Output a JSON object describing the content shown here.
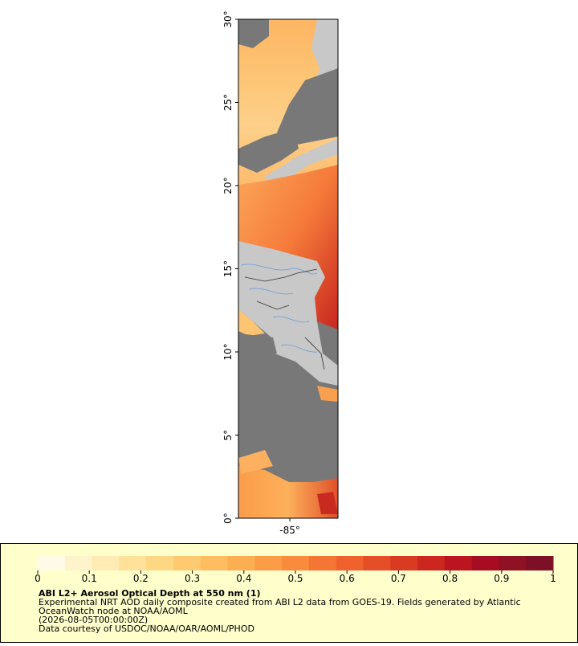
{
  "map": {
    "lat_range": [
      0,
      30
    ],
    "lon_range": [
      -88.1,
      -82.1
    ],
    "lat_ticks": [
      {
        "value": 0,
        "label": "0°"
      },
      {
        "value": 5,
        "label": "5°"
      },
      {
        "value": 10,
        "label": "10°"
      },
      {
        "value": 15,
        "label": "15°"
      },
      {
        "value": 20,
        "label": "20°"
      },
      {
        "value": 25,
        "label": "25°"
      },
      {
        "value": 30,
        "label": "30°"
      }
    ],
    "lon_ticks": [
      {
        "value": -85,
        "label": "-85°"
      }
    ]
  },
  "colorbar": {
    "range": [
      0,
      1
    ],
    "ticks": [
      0,
      0.1,
      0.2,
      0.3,
      0.4,
      0.5,
      0.6,
      0.7,
      0.8,
      0.9,
      1
    ],
    "colors": [
      "#fffbe6",
      "#fff3cc",
      "#ffebb3",
      "#ffe199",
      "#fed783",
      "#fdca70",
      "#fdbd60",
      "#fcae52",
      "#fc9c46",
      "#fa8a3c",
      "#f57634",
      "#ef622d",
      "#e54e27",
      "#d93a22",
      "#cc261f",
      "#bb161f",
      "#a60d22",
      "#901024",
      "#7d0f27"
    ]
  },
  "footer": {
    "title": "ABI L2+ Aerosol Optical Depth at 550 nm (1)",
    "lines": [
      "Experimental NRT AOD daily composite created from ABI L2 data from GOES-19. Fields generated by Atlantic",
      "OceanWatch node at NOAA/AOML",
      "(2026-08-05T00:00:00Z)",
      "Data courtesy of USDOC/NOAA/OAR/AOML/PHOD"
    ]
  }
}
